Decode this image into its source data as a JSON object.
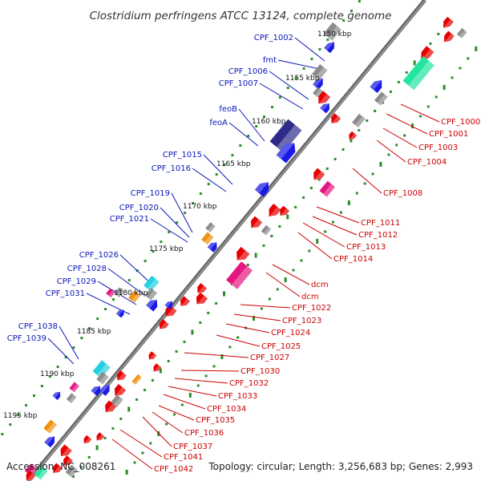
{
  "title": "Clostridium perfringens ATCC 13124, complete genome",
  "accession": "Accession: NC_008261",
  "topology": "Topology: circular; Length: 3,256,683 bp; Genes: 2,993",
  "colors": {
    "backbone": "#666666",
    "dots": "#2e8b2e",
    "left_label": "#0a16b8",
    "right_label": "#cc0000",
    "forward_gene": "#1a1ae6",
    "reverse_gene": "#e60000",
    "rna_gray": "#8c8c8c",
    "feo": "#2e2a8a",
    "pink": "#e6157f",
    "teal": "#22e6a0",
    "cyan": "#22d0e0",
    "orange": "#f09010"
  },
  "kbp_labels": [
    {
      "text": "1150 kbp"
    },
    {
      "text": "1155 kbp"
    },
    {
      "text": "1160 kbp"
    },
    {
      "text": "1165 kbp"
    },
    {
      "text": "1170 kbp"
    },
    {
      "text": "1175 kbp"
    },
    {
      "text": "1180 kbp"
    },
    {
      "text": "1185 kbp"
    },
    {
      "text": "1190 kbp"
    },
    {
      "text": "1195 kbp"
    }
  ],
  "left_labels": [
    {
      "text": "CPF_1002"
    },
    {
      "text": "fmt"
    },
    {
      "text": "CPF_1006"
    },
    {
      "text": "CPF_1007"
    },
    {
      "text": "feoB"
    },
    {
      "text": "feoA"
    },
    {
      "text": "CPF_1015"
    },
    {
      "text": "CPF_1016"
    },
    {
      "text": "CPF_1019"
    },
    {
      "text": "CPF_1020"
    },
    {
      "text": "CPF_1021"
    },
    {
      "text": "CPF_1026"
    },
    {
      "text": "CPF_1028"
    },
    {
      "text": "CPF_1029"
    },
    {
      "text": "CPF_1031"
    },
    {
      "text": "CPF_1038"
    },
    {
      "text": "CPF_1039"
    }
  ],
  "right_labels": [
    {
      "text": "CPF_1000"
    },
    {
      "text": "CPF_1001"
    },
    {
      "text": "CPF_1003"
    },
    {
      "text": "CPF_1004"
    },
    {
      "text": "CPF_1008"
    },
    {
      "text": "CPF_1011"
    },
    {
      "text": "CPF_1012"
    },
    {
      "text": "CPF_1013"
    },
    {
      "text": "CPF_1014"
    },
    {
      "text": "dcm"
    },
    {
      "text": "dcm"
    },
    {
      "text": "CPF_1022"
    },
    {
      "text": "CPF_1023"
    },
    {
      "text": "CPF_1024"
    },
    {
      "text": "CPF_1025"
    },
    {
      "text": "CPF_1027"
    },
    {
      "text": "CPF_1030"
    },
    {
      "text": "CPF_1032"
    },
    {
      "text": "CPF_1033"
    },
    {
      "text": "CPF_1034"
    },
    {
      "text": "CPF_1035"
    },
    {
      "text": "CPF_1036"
    },
    {
      "text": "CPF_1037"
    },
    {
      "text": "CPF_1041"
    },
    {
      "text": "CPF_1042"
    }
  ]
}
